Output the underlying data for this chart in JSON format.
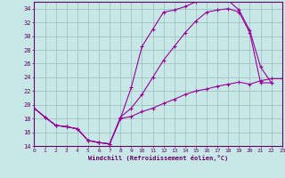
{
  "bg_color": "#c8e8e8",
  "line_color": "#990099",
  "grid_color": "#99bbbb",
  "xlabel": "Windchill (Refroidissement éolien,°C)",
  "xlim": [
    0,
    23
  ],
  "ylim": [
    14,
    35
  ],
  "yticks": [
    14,
    16,
    18,
    20,
    22,
    24,
    26,
    28,
    30,
    32,
    34
  ],
  "xticks": [
    0,
    1,
    2,
    3,
    4,
    5,
    6,
    7,
    8,
    9,
    10,
    11,
    12,
    13,
    14,
    15,
    16,
    17,
    18,
    19,
    20,
    21,
    22,
    23
  ],
  "line1_x": [
    0,
    1,
    2,
    3,
    4,
    5,
    6,
    7,
    8,
    9,
    10,
    11,
    12,
    13,
    14,
    15,
    16,
    17,
    18,
    19,
    20,
    21,
    22
  ],
  "line1_y": [
    19.5,
    18.2,
    17.0,
    16.8,
    16.5,
    14.8,
    14.5,
    14.3,
    18.0,
    22.5,
    28.5,
    31.0,
    33.5,
    33.8,
    34.3,
    35.0,
    35.2,
    35.5,
    35.2,
    33.8,
    30.8,
    25.5,
    23.2
  ],
  "line2_x": [
    0,
    1,
    2,
    3,
    4,
    5,
    6,
    7,
    8,
    9,
    10,
    11,
    12,
    13,
    14,
    15,
    16,
    17,
    18,
    19,
    20,
    21,
    22
  ],
  "line2_y": [
    19.5,
    18.2,
    17.0,
    16.8,
    16.5,
    14.8,
    14.5,
    14.3,
    18.2,
    19.5,
    21.5,
    24.0,
    26.5,
    28.5,
    30.5,
    32.2,
    33.5,
    33.8,
    34.0,
    33.5,
    30.5,
    23.2,
    23.2
  ],
  "line3_x": [
    0,
    1,
    2,
    3,
    4,
    5,
    6,
    7,
    8,
    9,
    10,
    11,
    12,
    13,
    14,
    15,
    16,
    17,
    18,
    19,
    20,
    21,
    22,
    23
  ],
  "line3_y": [
    19.5,
    18.2,
    17.0,
    16.8,
    16.5,
    14.8,
    14.5,
    14.3,
    18.0,
    18.3,
    19.0,
    19.5,
    20.2,
    20.8,
    21.5,
    22.0,
    22.3,
    22.7,
    23.0,
    23.3,
    23.0,
    23.5,
    23.8,
    23.8
  ],
  "xlabel_fontsize": 5.0,
  "tick_fontsize": 4.5,
  "linewidth": 0.8,
  "markersize": 2.5
}
